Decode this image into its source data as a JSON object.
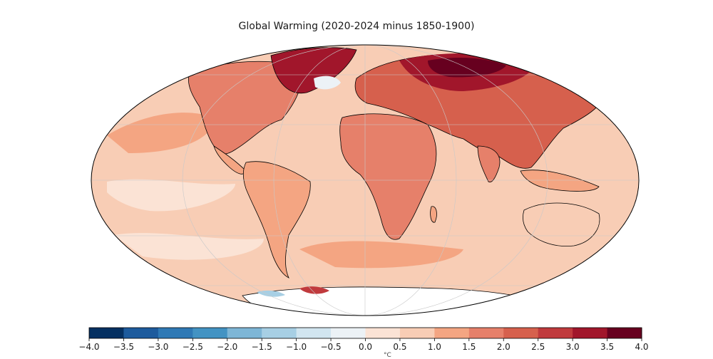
{
  "title": "Global Warming (2020-2024 minus 1850-1900)",
  "map": {
    "projection": "mollweide",
    "ocean_anomaly_color": "#f8cdb5",
    "graticule": "on",
    "regions": [
      {
        "name": "Arctic Siberia",
        "level": 3.8
      },
      {
        "name": "Greenland-Canada Arctic",
        "level": 3.4
      },
      {
        "name": "Eurasia",
        "level": 2.4
      },
      {
        "name": "North America",
        "level": 1.8
      },
      {
        "name": "Africa",
        "level": 1.7
      },
      {
        "name": "South America",
        "level": 1.5
      },
      {
        "name": "Australia",
        "level": 1.3
      },
      {
        "name": "Southern Ocean",
        "level": 1.2
      },
      {
        "name": "East Pacific",
        "level": 0.3
      },
      {
        "name": "North Atlantic warming hole",
        "level": -0.2
      },
      {
        "name": "Antarctica",
        "level": 0.0
      }
    ]
  },
  "colorbar": {
    "min": -4.0,
    "max": 4.0,
    "step": 0.5,
    "tick_labels": [
      "−4.0",
      "−3.5",
      "−3.0",
      "−2.5",
      "−2.0",
      "−1.5",
      "−1.0",
      "−0.5",
      "0.0",
      "0.5",
      "1.0",
      "1.5",
      "2.0",
      "2.5",
      "3.0",
      "3.5",
      "4.0"
    ],
    "colors": [
      "#053061",
      "#1d5b9d",
      "#2f79b5",
      "#4393c3",
      "#7eb6d6",
      "#a7cfe4",
      "#d1e5f0",
      "#ecf2f6",
      "#fbe3d5",
      "#f8cdb5",
      "#f4a582",
      "#e6806a",
      "#d6604d",
      "#c03a3d",
      "#a1162b",
      "#67001f"
    ],
    "unit_label": "°C"
  }
}
